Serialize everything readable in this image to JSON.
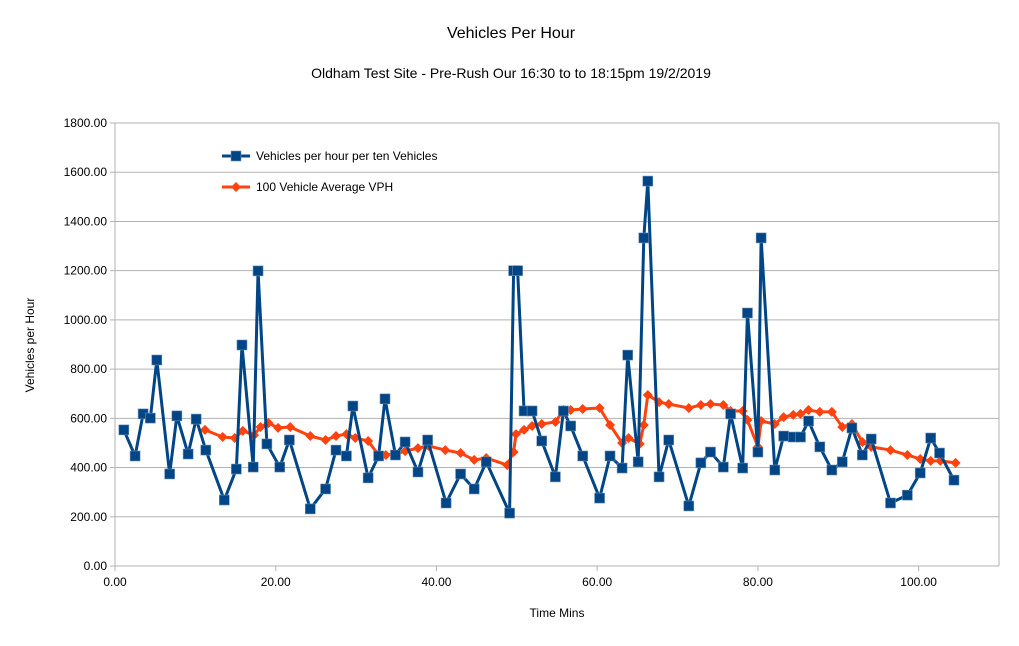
{
  "chart_data": {
    "type": "line",
    "title": "Vehicles Per Hour",
    "subtitle": "Oldham Test Site - Pre-Rush Our 16:30 to to 18:15pm 19/2/2019",
    "xlabel": "Time Mins",
    "ylabel": "Vehicles per Hour",
    "xlim": [
      0,
      110
    ],
    "ylim": [
      0,
      1800
    ],
    "xticks": [
      0,
      20,
      40,
      60,
      80,
      100
    ],
    "xtick_labels": [
      "0.00",
      "20.00",
      "40.00",
      "60.00",
      "80.00",
      "100.00"
    ],
    "yticks": [
      0,
      200,
      400,
      600,
      800,
      1000,
      1200,
      1400,
      1600,
      1800
    ],
    "ytick_labels": [
      "0.00",
      "200.00",
      "400.00",
      "600.00",
      "800.00",
      "1000.00",
      "1200.00",
      "1400.00",
      "1600.00",
      "1800.00"
    ],
    "grid": "horizontal",
    "legend_placement": "top-left",
    "series": [
      {
        "name": "Vehicles per hour per ten Vehicles",
        "color": "#004586",
        "marker": "square",
        "x": [
          1.1,
          2.5,
          3.5,
          4.4,
          5.2,
          6.8,
          7.7,
          9.1,
          10.1,
          11.3,
          13.6,
          15.1,
          15.8,
          17.2,
          17.8,
          18.9,
          20.5,
          21.7,
          24.3,
          26.2,
          27.5,
          28.8,
          29.6,
          31.5,
          32.8,
          33.6,
          34.9,
          36.1,
          37.7,
          38.9,
          41.2,
          43.0,
          44.7,
          46.2,
          49.1,
          49.6,
          50.1,
          50.9,
          51.9,
          53.1,
          54.8,
          55.8,
          56.7,
          58.2,
          60.3,
          61.6,
          63.1,
          63.8,
          65.1,
          65.8,
          66.3,
          67.7,
          68.9,
          71.4,
          72.9,
          74.1,
          75.7,
          76.6,
          78.1,
          78.7,
          80.0,
          80.4,
          82.1,
          83.2,
          84.4,
          85.3,
          86.3,
          87.7,
          89.2,
          90.5,
          91.7,
          93.0,
          94.1,
          96.5,
          98.6,
          100.2,
          101.5,
          102.6,
          104.4
        ],
        "y": [
          553,
          447,
          618,
          601,
          837,
          374,
          610,
          455,
          597,
          471,
          268,
          394,
          898,
          402,
          1199,
          496,
          402,
          512,
          232,
          313,
          471,
          447,
          650,
          358,
          447,
          679,
          451,
          504,
          382,
          512,
          256,
          374,
          313,
          423,
          215,
          1200,
          1200,
          630,
          630,
          508,
          362,
          630,
          569,
          447,
          276,
          447,
          398,
          857,
          423,
          1333,
          1564,
          362,
          512,
          244,
          419,
          463,
          402,
          618,
          398,
          1028,
          463,
          1333,
          390,
          528,
          524,
          524,
          589,
          484,
          390,
          423,
          561,
          451,
          516,
          256,
          288,
          378,
          520,
          459,
          349
        ]
      },
      {
        "name": "100 Vehicle Average VPH",
        "color": "#ff420e",
        "marker": "diamond",
        "x": [
          11.2,
          13.4,
          14.9,
          15.9,
          17.3,
          18.1,
          19.1,
          20.3,
          21.8,
          24.3,
          26.2,
          27.5,
          28.8,
          29.9,
          31.5,
          32.8,
          33.7,
          34.9,
          36.1,
          37.7,
          39.0,
          41.1,
          43.0,
          44.7,
          46.2,
          48.8,
          49.6,
          49.9,
          50.9,
          51.9,
          53.1,
          54.8,
          55.8,
          56.7,
          58.2,
          60.3,
          61.6,
          63.1,
          63.9,
          65.3,
          65.8,
          66.3,
          67.7,
          68.9,
          71.4,
          72.9,
          74.1,
          75.7,
          76.6,
          78.1,
          78.7,
          80.0,
          80.4,
          82.1,
          83.2,
          84.4,
          85.3,
          86.3,
          87.7,
          89.2,
          90.5,
          91.7,
          93.0,
          94.1,
          96.5,
          98.6,
          100.2,
          101.5,
          102.7,
          104.6
        ],
        "y": [
          553,
          524,
          520,
          549,
          532,
          565,
          581,
          561,
          565,
          528,
          512,
          528,
          536,
          520,
          508,
          451,
          451,
          455,
          467,
          479,
          488,
          471,
          459,
          431,
          439,
          410,
          463,
          536,
          553,
          569,
          577,
          585,
          634,
          634,
          638,
          642,
          573,
          500,
          520,
          496,
          573,
          695,
          666,
          658,
          642,
          654,
          658,
          654,
          630,
          630,
          593,
          484,
          589,
          577,
          605,
          614,
          618,
          634,
          626,
          626,
          565,
          577,
          504,
          484,
          471,
          451,
          435,
          427,
          427,
          419
        ]
      }
    ]
  }
}
